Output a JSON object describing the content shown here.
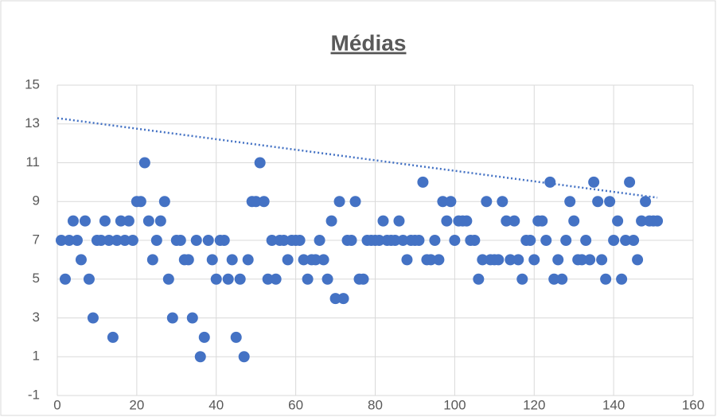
{
  "chart_data": {
    "type": "scatter",
    "title": "Médias",
    "color": "#4472c4",
    "grid": true,
    "x": [
      1,
      2,
      3,
      4,
      5,
      6,
      7,
      8,
      9,
      10,
      11,
      12,
      13,
      14,
      15,
      16,
      17,
      18,
      19,
      20,
      21,
      22,
      23,
      24,
      25,
      26,
      27,
      28,
      29,
      30,
      31,
      32,
      33,
      34,
      35,
      36,
      37,
      38,
      39,
      40,
      41,
      42,
      43,
      44,
      45,
      46,
      47,
      48,
      49,
      50,
      51,
      52,
      53,
      54,
      55,
      56,
      57,
      58,
      59,
      60,
      61,
      62,
      63,
      64,
      65,
      66,
      67,
      68,
      69,
      70,
      71,
      72,
      73,
      74,
      75,
      76,
      77,
      78,
      79,
      80,
      81,
      82,
      83,
      84,
      85,
      86,
      87,
      88,
      89,
      90,
      91,
      92,
      93,
      94,
      95,
      96,
      97,
      98,
      99,
      100,
      101,
      102,
      103,
      104,
      105,
      106,
      107,
      108,
      109,
      110,
      111,
      112,
      113,
      114,
      115,
      116,
      117,
      118,
      119,
      120,
      121,
      122,
      123,
      124,
      125,
      126,
      127,
      128,
      129,
      130,
      131,
      132,
      133,
      134,
      135,
      136,
      137,
      138,
      139,
      140,
      141,
      142,
      143,
      144,
      145,
      146,
      147,
      148,
      149,
      150,
      151
    ],
    "values": [
      7,
      5,
      7,
      8,
      7,
      6,
      8,
      5,
      3,
      7,
      7,
      8,
      7,
      2,
      7,
      8,
      7,
      8,
      7,
      9,
      9,
      11,
      8,
      6,
      7,
      8,
      9,
      5,
      3,
      7,
      7,
      6,
      6,
      3,
      7,
      1,
      2,
      7,
      6,
      5,
      7,
      7,
      5,
      6,
      2,
      5,
      1,
      6,
      9,
      9,
      11,
      9,
      5,
      7,
      5,
      7,
      7,
      6,
      7,
      7,
      7,
      6,
      5,
      6,
      6,
      7,
      6,
      5,
      8,
      4,
      9,
      4,
      7,
      7,
      9,
      5,
      5,
      7,
      7,
      7,
      7,
      8,
      7,
      7,
      7,
      8,
      7,
      6,
      7,
      7,
      7,
      10,
      6,
      6,
      7,
      6,
      9,
      8,
      9,
      7,
      8,
      8,
      8,
      7,
      7,
      5,
      6,
      9,
      6,
      6,
      6,
      9,
      8,
      6,
      8,
      6,
      5,
      7,
      7,
      6,
      8,
      8,
      7,
      10,
      5,
      6,
      5,
      7,
      9,
      8,
      6,
      6,
      7,
      6,
      10,
      9,
      6,
      5,
      9,
      7,
      8,
      5,
      7,
      10,
      7,
      6,
      8,
      9,
      8,
      8,
      8
    ],
    "trendline": {
      "x": [
        0,
        151
      ],
      "values": [
        13.3,
        9.2
      ]
    },
    "xlim": [
      0,
      160
    ],
    "xticks": [
      0,
      20,
      40,
      60,
      80,
      100,
      120,
      140,
      160
    ],
    "ylim": [
      -1,
      15
    ],
    "yticks": [
      -1,
      1,
      3,
      5,
      7,
      9,
      11,
      13,
      15
    ]
  }
}
